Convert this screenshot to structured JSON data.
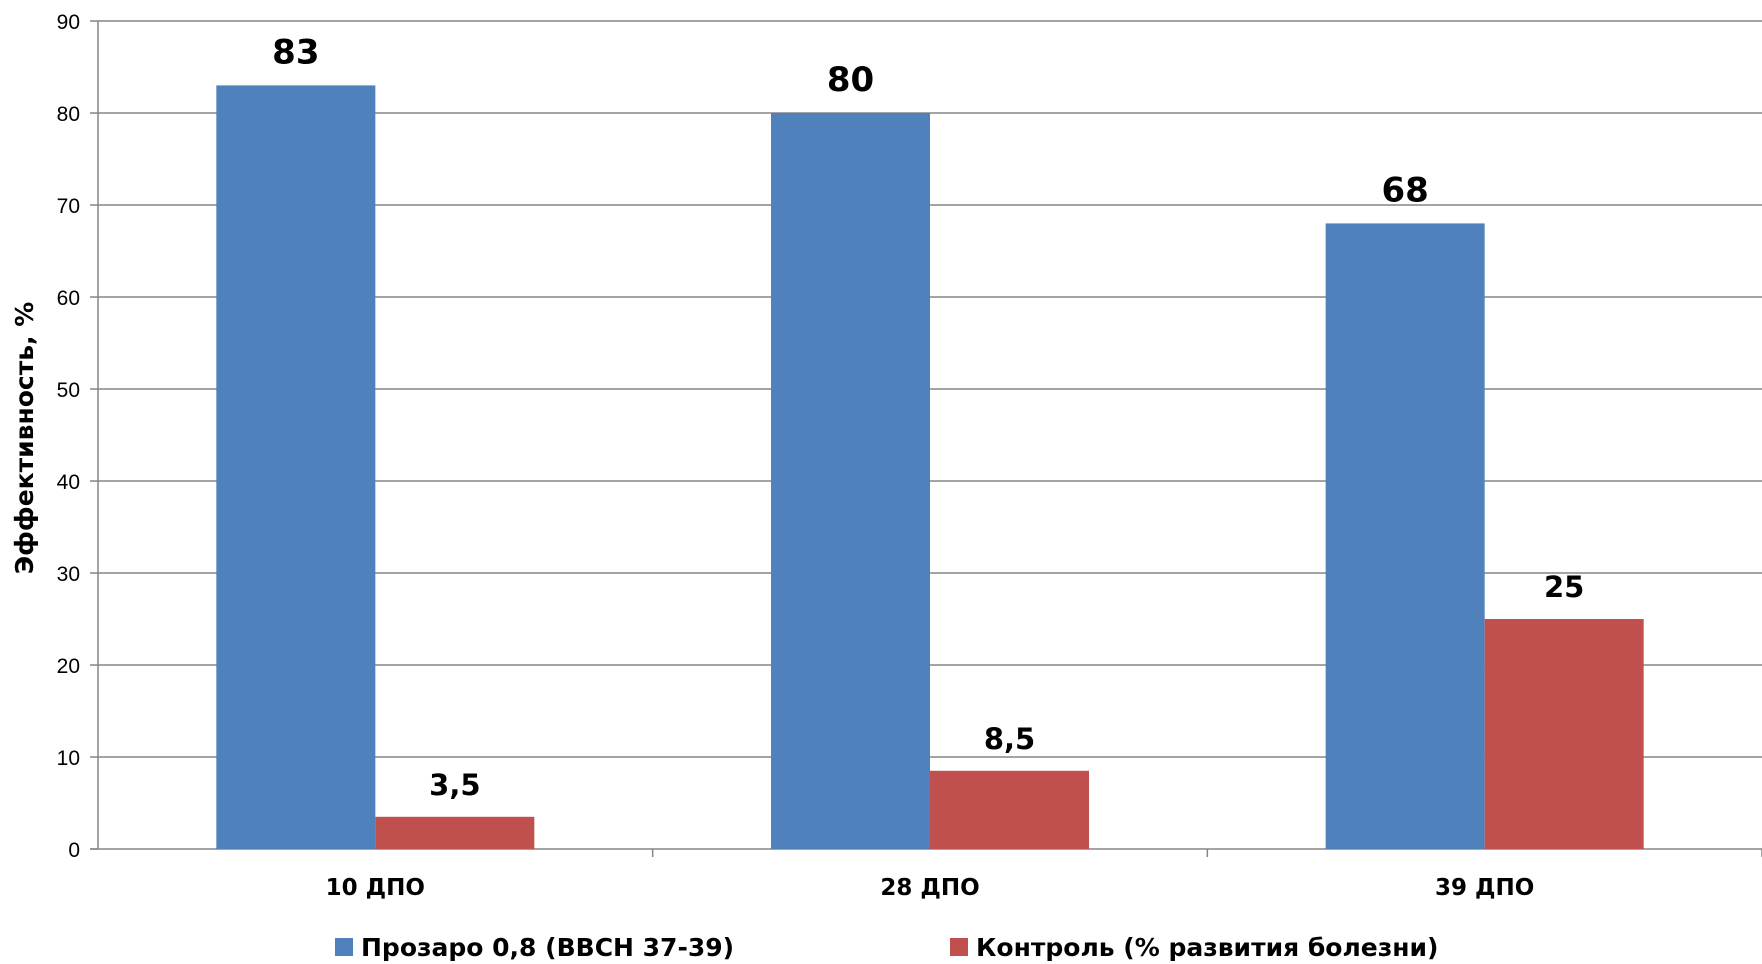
{
  "chart_data": {
    "type": "bar",
    "title": "",
    "ylabel": "Эффективность, %",
    "xlabel": "",
    "ylim": [
      0,
      90
    ],
    "yticks": [
      0,
      10,
      20,
      30,
      40,
      50,
      60,
      70,
      80,
      90
    ],
    "grid": true,
    "legend_position": "bottom",
    "categories": [
      "10 ДПО",
      "28 ДПО",
      "39 ДПО"
    ],
    "series": [
      {
        "name": "Прозаро 0,8 (BBCH 37-39)",
        "color": "#4f81bd",
        "values": [
          83,
          80,
          68
        ],
        "labels": [
          "83",
          "80",
          "68"
        ]
      },
      {
        "name": "Контроль (% развития болезни)",
        "color": "#c0504d",
        "values": [
          3.5,
          8.5,
          25
        ],
        "labels": [
          "3,5",
          "8,5",
          "25"
        ]
      }
    ]
  }
}
